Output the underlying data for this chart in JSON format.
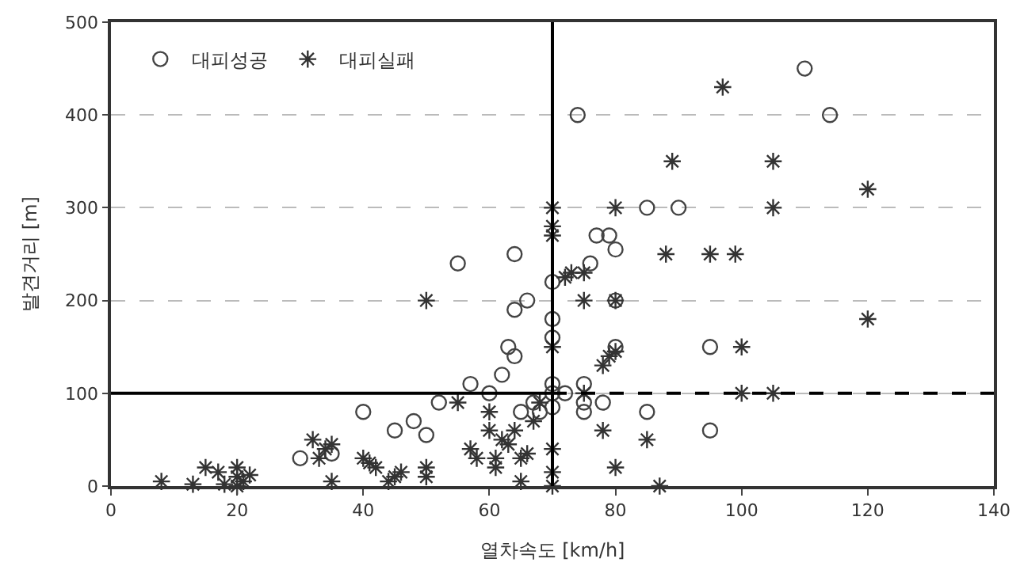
{
  "chart_data": {
    "type": "scatter",
    "xlabel": "열차속도 [km/h]",
    "ylabel": "발견거리 [m]",
    "xlim": [
      0,
      140
    ],
    "xticks": [
      0,
      20,
      40,
      60,
      80,
      100,
      120,
      140
    ],
    "ylim": [
      0,
      500
    ],
    "yticks": [
      0,
      100,
      200,
      300,
      400,
      500
    ],
    "grid": "y",
    "legend": "top left",
    "series": [
      {
        "name": "대피성공",
        "color": "#444444",
        "marker": "circle",
        "x": [
          30,
          35,
          40,
          45,
          48,
          50,
          52,
          55,
          57,
          60,
          62,
          63,
          64,
          64,
          64,
          65,
          66,
          67,
          68,
          70,
          70,
          70,
          70,
          70,
          74,
          75,
          75,
          75,
          76,
          77,
          78,
          79,
          80,
          80,
          80,
          85,
          85,
          90,
          95,
          95,
          110,
          114,
          70,
          72
        ],
        "values": [
          30,
          35,
          80,
          60,
          70,
          55,
          90,
          240,
          110,
          100,
          120,
          150,
          250,
          190,
          140,
          80,
          200,
          90,
          80,
          220,
          160,
          180,
          100,
          85,
          400,
          110,
          90,
          80,
          240,
          270,
          90,
          270,
          200,
          150,
          255,
          300,
          80,
          300,
          150,
          60,
          450,
          400,
          110,
          100
        ]
      },
      {
        "name": "대피실패",
        "color": "#333333",
        "marker": "cross",
        "x": [
          8,
          13,
          15,
          17,
          18,
          20,
          20,
          21,
          22,
          20,
          32,
          33,
          34,
          35,
          35,
          40,
          41,
          42,
          44,
          45,
          46,
          50,
          50,
          50,
          55,
          57,
          58,
          60,
          60,
          61,
          61,
          62,
          63,
          64,
          65,
          65,
          66,
          67,
          68,
          70,
          70,
          70,
          70,
          70,
          70,
          70,
          72,
          73,
          75,
          75,
          75,
          78,
          79,
          80,
          80,
          80,
          78,
          80,
          85,
          87,
          88,
          89,
          95,
          97,
          99,
          100,
          100,
          105,
          105,
          105,
          120,
          120
        ],
        "values": [
          5,
          2,
          20,
          15,
          2,
          20,
          10,
          5,
          12,
          0,
          50,
          30,
          40,
          45,
          5,
          30,
          25,
          20,
          5,
          10,
          15,
          20,
          10,
          200,
          90,
          40,
          30,
          80,
          60,
          30,
          20,
          50,
          45,
          60,
          5,
          30,
          35,
          70,
          90,
          300,
          280,
          270,
          150,
          40,
          15,
          0,
          225,
          230,
          230,
          200,
          100,
          130,
          140,
          300,
          200,
          145,
          60,
          20,
          50,
          0,
          250,
          350,
          250,
          430,
          250,
          150,
          100,
          350,
          300,
          100,
          320,
          180
        ]
      },
      {
        "type": "line",
        "color": "#000000",
        "marker": "none",
        "line_style": "solid",
        "x": [
          0,
          70
        ],
        "values": [
          100,
          100
        ]
      },
      {
        "type": "line",
        "color": "#000000",
        "marker": "none",
        "line_style": "solid",
        "x": [
          70,
          70
        ],
        "values": [
          0,
          500
        ]
      },
      {
        "type": "line",
        "color": "#000000",
        "marker": "none",
        "line_style": "dashed",
        "x": [
          70,
          140
        ],
        "values": [
          100,
          100
        ]
      }
    ]
  }
}
